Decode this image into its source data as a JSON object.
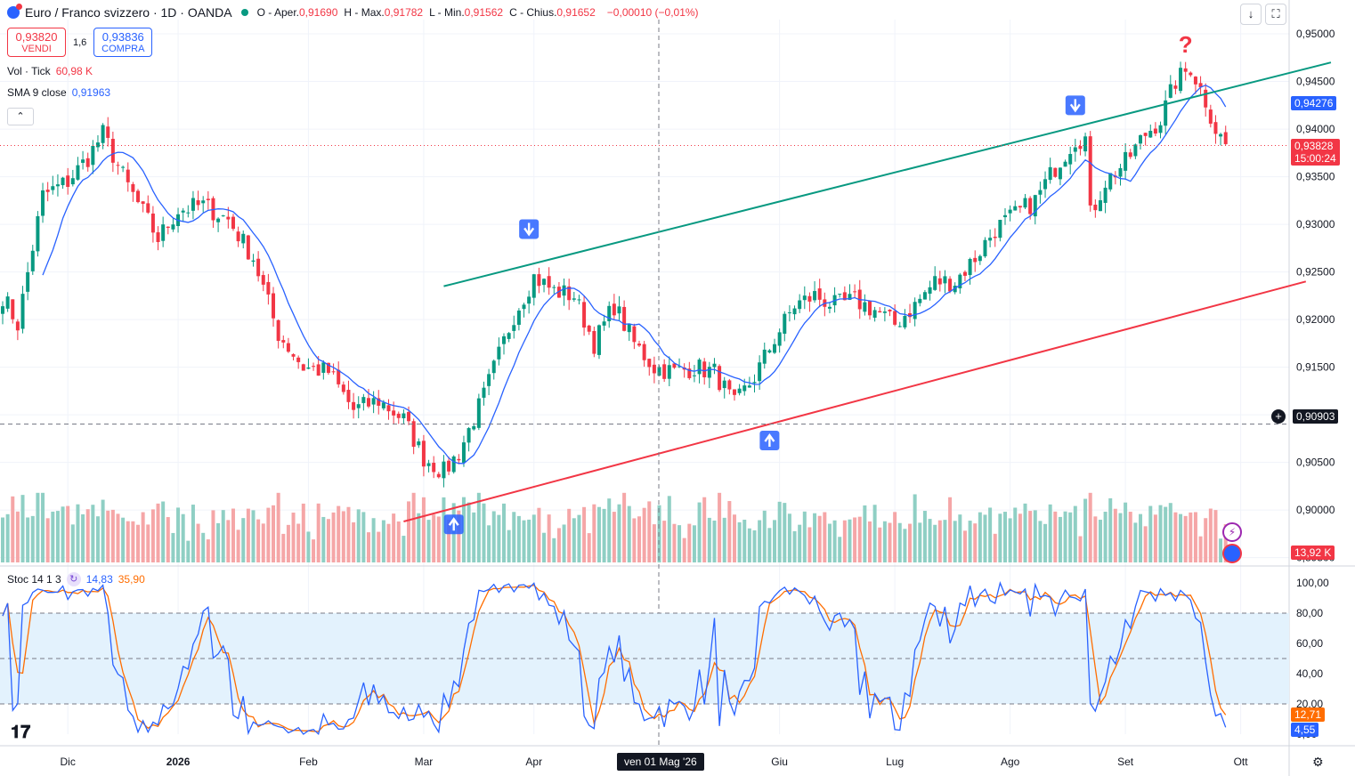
{
  "header": {
    "symbol_title": "Euro / Franco svizzero · 1D · OANDA",
    "ohlc": [
      {
        "k": "O",
        "label": "Aper.",
        "v": "0,91690"
      },
      {
        "k": "H",
        "label": "Max.",
        "v": "0,91782"
      },
      {
        "k": "L",
        "label": "Min.",
        "v": "0,91562"
      },
      {
        "k": "C",
        "label": "Chius.",
        "v": "0,91652"
      }
    ],
    "change": "−0,00010 (−0,01%)",
    "sell_price": "0,93820",
    "sell_label": "VENDI",
    "spread": "1,6",
    "buy_price": "0,93836",
    "buy_label": "COMPRA",
    "vol_label": "Vol · Tick",
    "vol_value": "60,98 K",
    "sma_label": "SMA 9 close",
    "sma_value": "0,91963",
    "stoch_label": "Stoc 14 1 3",
    "stoch_k": "14,83",
    "stoch_d": "35,90"
  },
  "price_tags": {
    "sma_last": "0,94276",
    "last_price": "0,93828",
    "countdown": "15:00:24",
    "crosshair_price": "0,90903",
    "volume_last": "13,92 K",
    "stoch_d_last": "12,71",
    "stoch_k_last": "4,55"
  },
  "crosshair_date": "ven 01 Mag '26",
  "chart_data": {
    "type": "candlestick",
    "title": "Euro / Franco svizzero · 1D · OANDA",
    "price_axis_ticks": [
      "0,95000",
      "0,94500",
      "0,94000",
      "0,93500",
      "0,93000",
      "0,92500",
      "0,92000",
      "0,91500",
      "0,91000",
      "0,90500",
      "0,90000",
      "0,89500"
    ],
    "price_range": [
      0.8945,
      0.9515
    ],
    "stoch_axis_ticks": [
      "100,00",
      "80,00",
      "60,00",
      "40,00",
      "20,00",
      "0,00"
    ],
    "stoch_levels": [
      80,
      50,
      20
    ],
    "time_axis": [
      "Dic",
      "2026",
      "Feb",
      "Mar",
      "Apr",
      "Giu",
      "Lug",
      "Ago",
      "Set",
      "Ott"
    ],
    "close_anchors": [
      [
        0,
        0.9225
      ],
      [
        3,
        0.9195
      ],
      [
        8,
        0.933
      ],
      [
        13,
        0.9345
      ],
      [
        17,
        0.937
      ],
      [
        20,
        0.9395
      ],
      [
        25,
        0.934
      ],
      [
        31,
        0.9285
      ],
      [
        35,
        0.9315
      ],
      [
        40,
        0.932
      ],
      [
        45,
        0.9305
      ],
      [
        50,
        0.9265
      ],
      [
        55,
        0.9185
      ],
      [
        60,
        0.915
      ],
      [
        65,
        0.9145
      ],
      [
        70,
        0.9105
      ],
      [
        75,
        0.9115
      ],
      [
        80,
        0.9095
      ],
      [
        84,
        0.9055
      ],
      [
        88,
        0.904
      ],
      [
        91,
        0.906
      ],
      [
        96,
        0.912
      ],
      [
        102,
        0.9205
      ],
      [
        106,
        0.9245
      ],
      [
        110,
        0.923
      ],
      [
        114,
        0.9225
      ],
      [
        118,
        0.9175
      ],
      [
        122,
        0.9215
      ],
      [
        126,
        0.9175
      ],
      [
        130,
        0.915
      ],
      [
        134,
        0.9145
      ],
      [
        138,
        0.915
      ],
      [
        142,
        0.9145
      ],
      [
        146,
        0.911
      ],
      [
        150,
        0.914
      ],
      [
        154,
        0.918
      ],
      [
        158,
        0.9215
      ],
      [
        162,
        0.9225
      ],
      [
        166,
        0.9215
      ],
      [
        170,
        0.922
      ],
      [
        174,
        0.921
      ],
      [
        178,
        0.9195
      ],
      [
        182,
        0.9215
      ],
      [
        186,
        0.924
      ],
      [
        190,
        0.924
      ],
      [
        194,
        0.9265
      ],
      [
        198,
        0.9295
      ],
      [
        202,
        0.931
      ],
      [
        206,
        0.9325
      ],
      [
        210,
        0.936
      ],
      [
        214,
        0.939
      ],
      [
        216,
        0.939
      ],
      [
        217,
        0.931
      ],
      [
        220,
        0.9345
      ],
      [
        224,
        0.9365
      ],
      [
        228,
        0.9395
      ],
      [
        231,
        0.941
      ],
      [
        234,
        0.945
      ],
      [
        237,
        0.9465
      ],
      [
        240,
        0.943
      ],
      [
        242,
        0.94
      ],
      [
        244,
        0.9383
      ]
    ],
    "sma_period": 9,
    "trendlines": [
      {
        "name": "upper",
        "color": "#089981",
        "points": [
          [
            88,
            0.9235
          ],
          [
            265,
            0.947
          ]
        ]
      },
      {
        "name": "lower",
        "color": "#f23645",
        "points": [
          [
            80,
            0.8988
          ],
          [
            260,
            0.924
          ]
        ]
      }
    ],
    "markers": [
      {
        "type": "arrow-down",
        "at": [
          105,
          0.9295
        ]
      },
      {
        "type": "arrow-down",
        "at": [
          214,
          0.9425
        ]
      },
      {
        "type": "arrow-up",
        "at": [
          153,
          0.9073
        ]
      },
      {
        "type": "arrow-up",
        "at": [
          90,
          0.8985
        ]
      },
      {
        "type": "question",
        "at": [
          236,
          0.9488
        ]
      }
    ],
    "last_value": 0.93828,
    "crosshair_value": 0.90903,
    "stoch_last": {
      "k": 4.55,
      "d": 12.71
    }
  },
  "colors": {
    "up": "#089981",
    "down": "#f23645",
    "sma": "#2962ff",
    "vol_up": "#8fcfc4",
    "vol_down": "#f5a6a7",
    "stoch_k": "#2962ff",
    "stoch_d": "#ff6d00",
    "stoch_band": "#e3f2fd"
  }
}
